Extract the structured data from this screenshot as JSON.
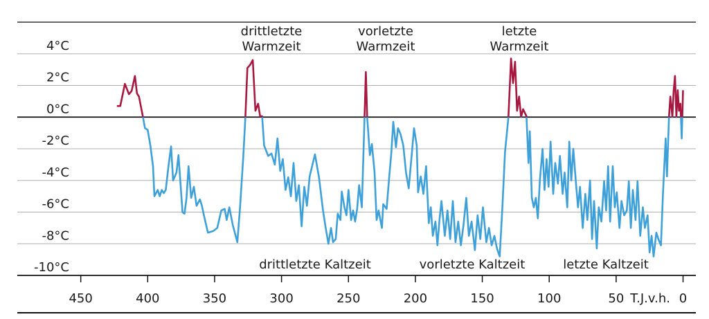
{
  "chart_data": {
    "type": "line",
    "x_label": "T.J.v.h.",
    "annotations": [
      {
        "lines": [
          "drittletzte",
          "Warmzeit"
        ]
      },
      {
        "lines": [
          "vorletzte",
          "Warmzeit"
        ]
      },
      {
        "lines": [
          "letzte",
          "Warmzeit"
        ]
      },
      {
        "lines": [
          "drittletzte Kaltzeit"
        ]
      },
      {
        "lines": [
          "vorletzte Kaltzeit"
        ]
      },
      {
        "lines": [
          "letzte Kaltzeit"
        ]
      }
    ],
    "x": [
      423,
      420.5,
      417,
      414,
      412,
      409.5,
      408,
      406.5,
      403.5,
      402,
      400,
      398,
      396,
      395,
      392.5,
      391,
      389.5,
      388,
      386.5,
      384.5,
      382.5,
      381,
      378.5,
      377,
      375.5,
      374,
      372.5,
      371,
      369.5,
      367.5,
      365.5,
      363.5,
      361,
      359.5,
      358,
      355,
      351,
      348,
      345,
      342.5,
      341,
      339,
      336.5,
      333,
      331,
      328.5,
      327,
      325.5,
      323.5,
      321.5,
      319.5,
      317.5,
      316,
      314.5,
      313,
      310,
      307.5,
      305,
      303,
      301,
      299,
      297,
      295,
      293,
      291,
      289,
      287,
      285,
      283,
      281,
      279,
      275,
      272,
      269,
      267,
      265,
      263,
      261.5,
      259.5,
      258,
      256,
      255,
      253,
      251.5,
      250,
      248,
      246.5,
      245,
      243.5,
      242,
      240,
      238,
      237,
      236,
      234,
      232.5,
      230.5,
      229,
      227.5,
      225,
      224,
      221.5,
      219.5,
      218,
      216.5,
      214.5,
      213,
      211,
      209,
      207,
      205,
      202.5,
      201,
      199,
      198,
      196,
      194,
      192,
      190,
      188.5,
      187,
      185,
      183.5,
      182,
      180.5,
      178,
      176,
      174,
      172,
      170,
      168,
      166,
      164,
      162,
      160,
      158,
      155.5,
      153.5,
      151.5,
      149.5,
      147,
      145,
      143,
      141,
      139,
      137,
      135,
      133,
      130.5,
      128.5,
      127,
      125.5,
      124,
      122.5,
      121,
      119.5,
      117,
      115.5,
      114.5,
      113,
      111.5,
      110,
      108.5,
      107,
      105,
      103.5,
      102,
      100.5,
      99,
      97,
      95.5,
      93.5,
      92,
      90,
      88.5,
      86.5,
      85,
      83.5,
      82,
      80,
      78.5,
      77,
      75,
      73,
      71.5,
      69.5,
      68,
      66.5,
      64.5,
      63,
      61,
      59,
      57.5,
      56,
      54.5,
      52.5,
      51,
      49.5,
      47.5,
      46,
      44,
      42,
      40.5,
      39,
      37.5,
      35.5,
      34,
      32,
      30,
      28.5,
      26.5,
      25,
      23.5,
      22,
      20,
      18.5,
      16.5,
      15,
      13,
      12,
      10.5,
      9.5,
      8,
      7,
      6,
      5,
      4,
      3,
      2,
      1,
      0
    ],
    "series": [
      {
        "color": "#3ea0d8",
        "positive_color": "#a8173f",
        "values": [
          0.7,
          0.7,
          2.1,
          1.45,
          1.65,
          2.6,
          1.5,
          1.3,
          0,
          -0.7,
          -0.8,
          -1.8,
          -3.1,
          -5.0,
          -4.6,
          -5.0,
          -4.6,
          -4.8,
          -4.6,
          -3.1,
          -1.85,
          -4.0,
          -3.5,
          -2.4,
          -4.2,
          -6.0,
          -6.1,
          -5.1,
          -3.1,
          -5.1,
          -4.4,
          -5.6,
          -5.2,
          -5.6,
          -6.2,
          -7.3,
          -7.2,
          -7.0,
          -5.9,
          -5.8,
          -6.5,
          -5.7,
          -6.8,
          -7.9,
          -5.7,
          -2.4,
          0,
          3.1,
          3.3,
          3.6,
          0.4,
          0.85,
          0.05,
          0.05,
          -1.8,
          -2.45,
          -2.3,
          -3.0,
          -1.35,
          -3.4,
          -2.65,
          -4.6,
          -3.8,
          -5.0,
          -2.9,
          -5.3,
          -4.3,
          -6.9,
          -4.4,
          -5.6,
          -3.75,
          -2.35,
          -3.8,
          -5.9,
          -7.0,
          -8.0,
          -7.0,
          -7.9,
          -7.7,
          -6.1,
          -6.5,
          -4.7,
          -5.7,
          -6.2,
          -4.6,
          -6.5,
          -5.9,
          -6.6,
          -5.8,
          -4.3,
          -5.7,
          0,
          2.85,
          0,
          -2.4,
          -1.7,
          -3.5,
          -6.5,
          -5.9,
          -7.0,
          -5.5,
          -5.8,
          -3.75,
          -2.3,
          -0.3,
          -1.9,
          -0.7,
          -1.1,
          -1.8,
          -3.5,
          -4.5,
          -2.15,
          -0.7,
          -1.8,
          -4.75,
          -3.75,
          -4.85,
          -3.1,
          -6.7,
          -5.7,
          -7.5,
          -6.6,
          -8.1,
          -6.5,
          -5.3,
          -7.5,
          -5.9,
          -7.7,
          -5.3,
          -7.9,
          -6.6,
          -8.1,
          -6.8,
          -5.1,
          -7.5,
          -6.6,
          -8.4,
          -6.2,
          -7.7,
          -5.7,
          -7.9,
          -7.0,
          -8.1,
          -7.5,
          -8.3,
          -8.8,
          -5.7,
          -2.2,
          0,
          3.7,
          2.15,
          3.5,
          0.4,
          1.3,
          0,
          0.5,
          0.05,
          -2.9,
          -0.9,
          -5.1,
          -5.7,
          -5.1,
          -6.4,
          -4.0,
          -2.0,
          -4.6,
          -2.65,
          -4.4,
          -1.55,
          -4.85,
          -2.9,
          -4.2,
          -2.45,
          -4.85,
          -3.5,
          -5.7,
          -1.55,
          -4.0,
          -2.0,
          -4.2,
          -5.7,
          -4.4,
          -7.0,
          -4.85,
          -6.5,
          -4.0,
          -7.7,
          -5.3,
          -8.3,
          -5.7,
          -6.6,
          -4.05,
          -5.9,
          -3.1,
          -6.6,
          -3.1,
          -5.7,
          -4.75,
          -7.0,
          -5.3,
          -6.2,
          -5.9,
          -4.05,
          -7.0,
          -4.6,
          -6.5,
          -4.05,
          -7.5,
          -5.7,
          -7.0,
          -6.2,
          -8.55,
          -7.5,
          -8.8,
          -7.3,
          -7.7,
          -8.1,
          -4.85,
          -1.35,
          -3.75,
          0,
          1.3,
          0,
          1.7,
          2.6,
          0,
          1.7,
          0.4,
          0.85,
          -1.35,
          1.7
        ]
      }
    ],
    "xlim": [
      500,
      -8
    ],
    "xticks": [
      450,
      400,
      350,
      300,
      250,
      200,
      150,
      100,
      50,
      0
    ],
    "ylim": [
      -10,
      6
    ],
    "yticks": [
      {
        "value": 4,
        "label": "4°C"
      },
      {
        "value": 2,
        "label": "2°C"
      },
      {
        "value": 0,
        "label": "0°C"
      },
      {
        "value": -2,
        "label": "-2°C"
      },
      {
        "value": -4,
        "label": "-4°C"
      },
      {
        "value": -6,
        "label": "-6°C"
      },
      {
        "value": -8,
        "label": "-8°C"
      },
      {
        "value": -10,
        "label": "-10°C"
      }
    ],
    "grid": true
  }
}
